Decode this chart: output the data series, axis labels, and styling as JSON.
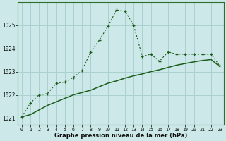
{
  "title": "Graphe pression niveau de la mer (hPa)",
  "bg_color": "#cce8e8",
  "grid_color": "#aad0d0",
  "line_color": "#1a5c1a",
  "xlim": [
    -0.5,
    23.5
  ],
  "ylim": [
    1020.7,
    1026.0
  ],
  "yticks": [
    1021,
    1022,
    1023,
    1024,
    1025
  ],
  "xticks": [
    0,
    1,
    2,
    3,
    4,
    5,
    6,
    7,
    8,
    9,
    10,
    11,
    12,
    13,
    14,
    15,
    16,
    17,
    18,
    19,
    20,
    21,
    22,
    23
  ],
  "series1_x": [
    0,
    1,
    2,
    3,
    4,
    5,
    6,
    7,
    8,
    9,
    10,
    11,
    12,
    13,
    14,
    15,
    16,
    17,
    18,
    19,
    20,
    21,
    22,
    23
  ],
  "series1_y": [
    1021.05,
    1021.65,
    1022.0,
    1022.05,
    1022.5,
    1022.55,
    1022.75,
    1023.05,
    1023.85,
    1024.35,
    1024.95,
    1025.65,
    1025.6,
    1025.0,
    1023.65,
    1023.75,
    1023.45,
    1023.85,
    1023.75,
    1023.75,
    1023.75,
    1023.75,
    1023.75,
    1023.25
  ],
  "series2_x": [
    0,
    1,
    2,
    3,
    4,
    5,
    6,
    7,
    8,
    9,
    10,
    11,
    12,
    13,
    14,
    15,
    16,
    17,
    18,
    19,
    20,
    21,
    22,
    23
  ],
  "series2_y": [
    1021.05,
    1021.15,
    1021.35,
    1021.55,
    1021.7,
    1021.85,
    1022.0,
    1022.1,
    1022.2,
    1022.35,
    1022.5,
    1022.6,
    1022.72,
    1022.82,
    1022.9,
    1023.0,
    1023.08,
    1023.18,
    1023.28,
    1023.35,
    1023.42,
    1023.48,
    1023.52,
    1023.22
  ]
}
